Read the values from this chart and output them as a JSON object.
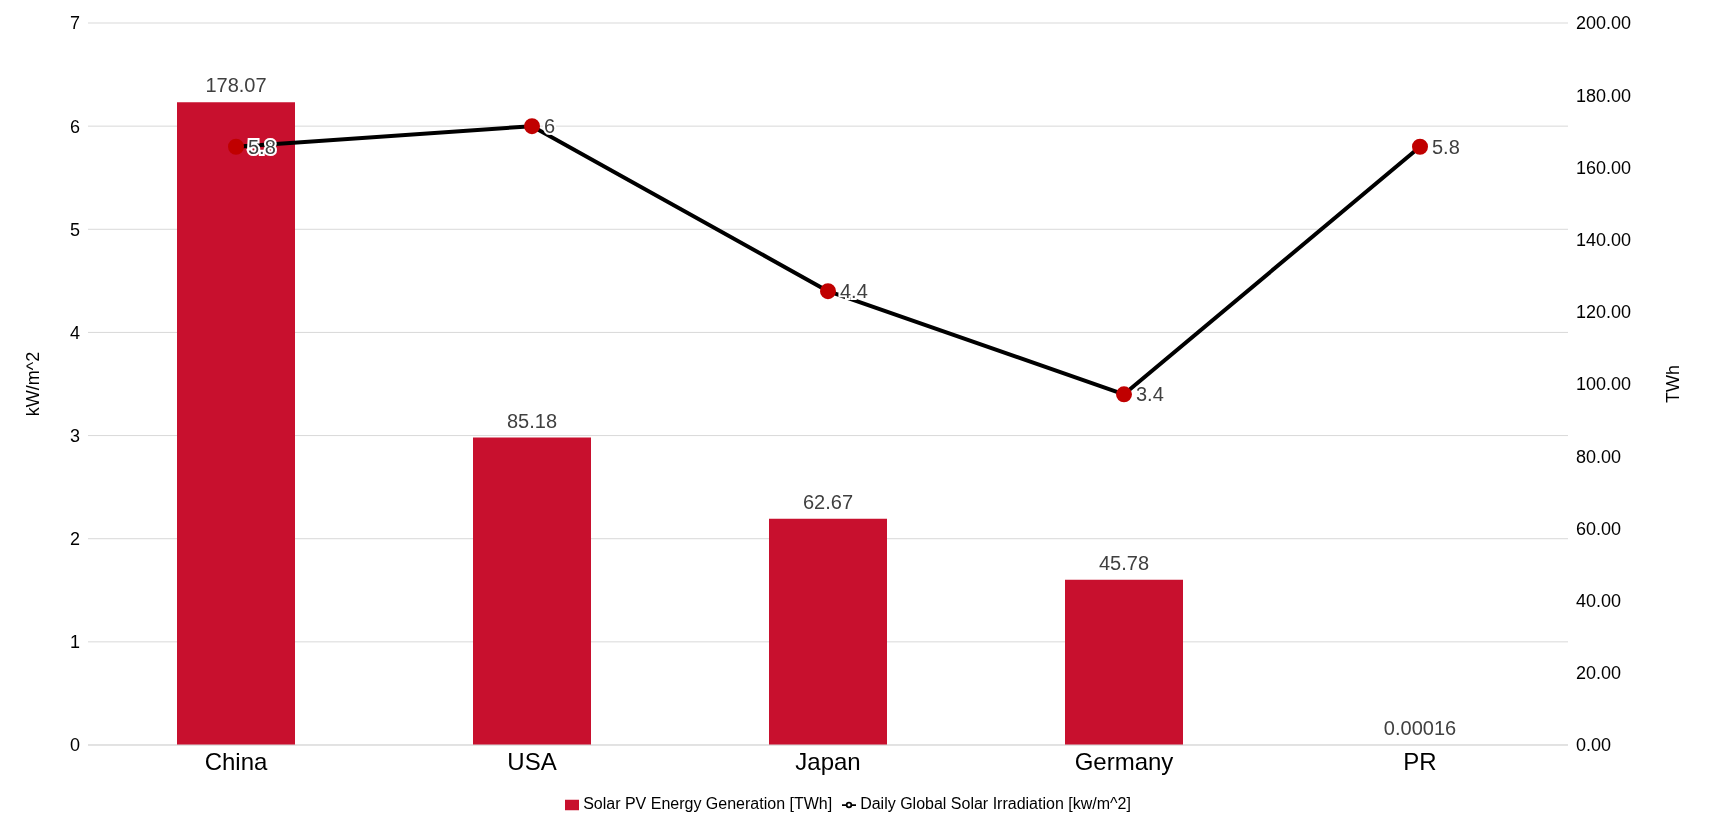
{
  "chart_data": {
    "type": "bar",
    "categories": [
      "China",
      "USA",
      "Japan",
      "Germany",
      "PR"
    ],
    "series": [
      {
        "name": "Solar PV Energy Generation [TWh]",
        "axis": "y2",
        "color": "#c8102e",
        "values": [
          178.07,
          85.18,
          62.67,
          45.78,
          0.00016
        ]
      },
      {
        "name": "Daily Global Solar Irradiation [kw/m^2]",
        "type": "line",
        "axis": "y",
        "color": "#000000",
        "values": [
          5.8,
          6,
          4.4,
          3.4,
          5.8
        ]
      }
    ],
    "ylabel": "kW/m^2",
    "y2label": "TWh",
    "ylim": [
      0,
      7
    ],
    "yticks": [
      0,
      1,
      2,
      3,
      4,
      5,
      6,
      7
    ],
    "y2lim": [
      0,
      200
    ],
    "y2ticks": [
      {
        "value": 0,
        "label": "0.00"
      },
      {
        "value": 20,
        "label": "20.00"
      },
      {
        "value": 40,
        "label": "40.00"
      },
      {
        "value": 60,
        "label": "60.00"
      },
      {
        "value": 80,
        "label": "80.00"
      },
      {
        "value": 100,
        "label": "100.00"
      },
      {
        "value": 120,
        "label": "120.00"
      },
      {
        "value": 140,
        "label": "140.00"
      },
      {
        "value": 160,
        "label": "160.00"
      },
      {
        "value": 180,
        "label": "180.00"
      },
      {
        "value": 200,
        "label": "200.00"
      }
    ],
    "grid": "y",
    "legend": "bottom",
    "marker": "circle",
    "data_labels": true
  }
}
